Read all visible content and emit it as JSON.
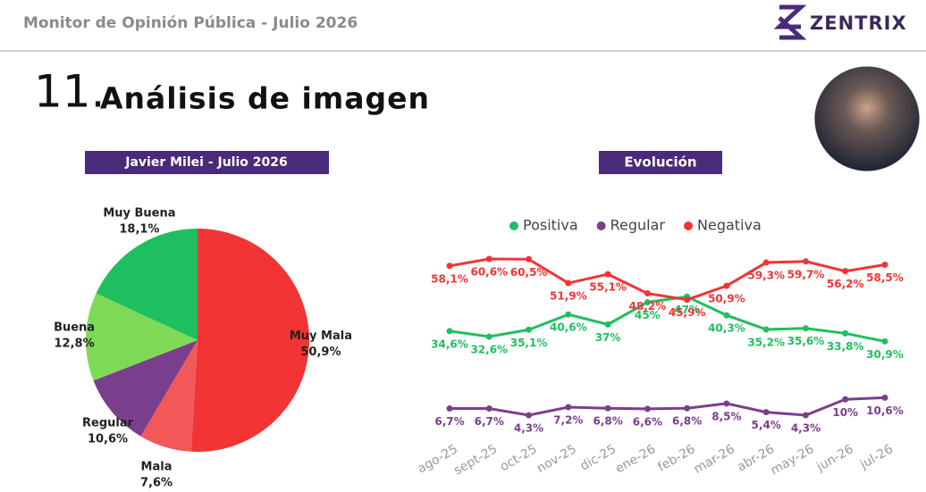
{
  "header": {
    "title": "Monitor de Opinión Pública - Julio 2026",
    "brand": "ZENTRIX"
  },
  "section": {
    "number": "11.",
    "title": "Análisis de imagen"
  },
  "chart_data": [
    {
      "type": "pie",
      "title": "Javier Milei - Julio 2026",
      "categories": [
        "Muy Mala",
        "Mala",
        "Regular",
        "Buena",
        "Muy Buena"
      ],
      "values": [
        50.9,
        7.6,
        10.6,
        12.8,
        18.1
      ],
      "value_labels": [
        "50,9%",
        "7,6%",
        "10,6%",
        "12,8%",
        "18,1%"
      ],
      "colors": [
        "#f23434",
        "#f25858",
        "#7a3f8c",
        "#7ed957",
        "#1fbf5f"
      ]
    },
    {
      "type": "line",
      "title": "Evolución",
      "categories": [
        "ago-25",
        "sept-25",
        "oct-25",
        "nov-25",
        "dic-25",
        "ene-26",
        "feb-26",
        "mar-26",
        "abr-26",
        "may-26",
        "jun-26",
        "jul-26"
      ],
      "series": [
        {
          "name": "Positiva",
          "color": "#1fbf5f",
          "values": [
            34.6,
            32.6,
            35.1,
            40.6,
            37,
            45,
            47,
            40.3,
            35.2,
            35.6,
            33.8,
            30.9
          ],
          "value_labels": [
            "34,6%",
            "32,6%",
            "35,1%",
            "40,6%",
            "37%",
            "45%",
            "47%",
            "40,3%",
            "35,2%",
            "35,6%",
            "33,8%",
            "30,9%"
          ]
        },
        {
          "name": "Regular",
          "color": "#7a3f8c",
          "values": [
            6.7,
            6.7,
            4.3,
            7.2,
            6.8,
            6.6,
            6.8,
            8.5,
            5.4,
            4.3,
            10,
            10.6
          ],
          "value_labels": [
            "6,7%",
            "6,7%",
            "4,3%",
            "7,2%",
            "6,8%",
            "6,6%",
            "6,8%",
            "8,5%",
            "5,4%",
            "4,3%",
            "10%",
            "10,6%"
          ]
        },
        {
          "name": "Negativa",
          "color": "#f23434",
          "values": [
            58.1,
            60.6,
            60.5,
            51.9,
            55.1,
            48.2,
            45.9,
            50.9,
            59.3,
            59.7,
            56.2,
            58.5
          ],
          "value_labels": [
            "58,1%",
            "60,6%",
            "60,5%",
            "51,9%",
            "55,1%",
            "48,2%",
            "45,9%",
            "50,9%",
            "59,3%",
            "59,7%",
            "56,2%",
            "58,5%"
          ]
        }
      ]
    }
  ]
}
